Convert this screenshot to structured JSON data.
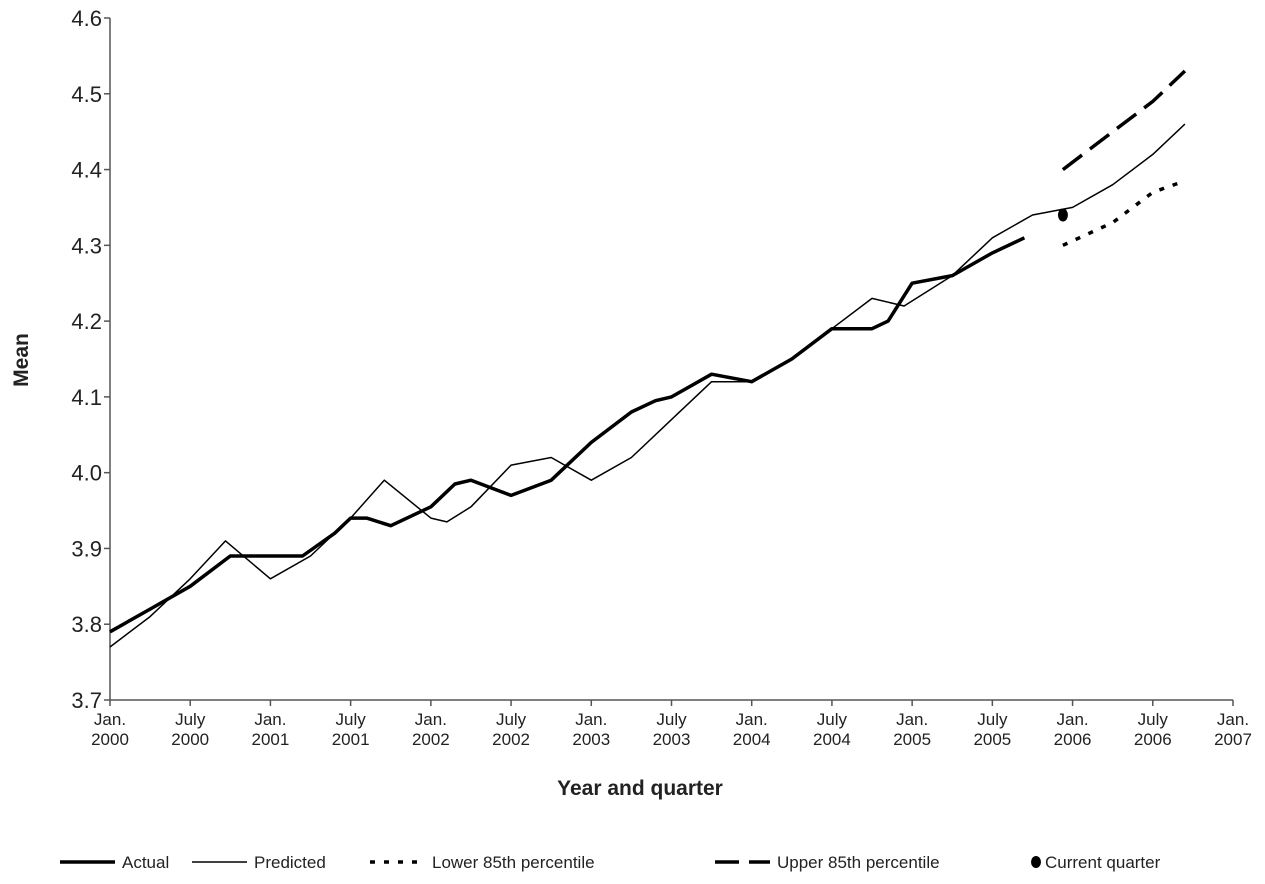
{
  "chart_data": {
    "type": "line",
    "ylabel": "Mean",
    "xlabel": "Year and quarter",
    "xlim": [
      2000,
      2007
    ],
    "ylim": [
      3.7,
      4.6
    ],
    "xticks": [
      {
        "value": 2000,
        "label": "Jan. 2000"
      },
      {
        "value": 2000.5,
        "label": "July 2000"
      },
      {
        "value": 2001,
        "label": "Jan. 2001"
      },
      {
        "value": 2001.5,
        "label": "July 2001"
      },
      {
        "value": 2002,
        "label": "Jan. 2002"
      },
      {
        "value": 2002.5,
        "label": "July 2002"
      },
      {
        "value": 2003,
        "label": "Jan. 2003"
      },
      {
        "value": 2003.5,
        "label": "July 2003"
      },
      {
        "value": 2004,
        "label": "Jan. 2004"
      },
      {
        "value": 2004.5,
        "label": "July 2004"
      },
      {
        "value": 2005,
        "label": "Jan. 2005"
      },
      {
        "value": 2005.5,
        "label": "July 2005"
      },
      {
        "value": 2006,
        "label": "Jan. 2006"
      },
      {
        "value": 2006.5,
        "label": "July 2006"
      },
      {
        "value": 2007,
        "label": "Jan. 2007"
      }
    ],
    "yticks": [
      {
        "value": 3.7,
        "label": "3.7"
      },
      {
        "value": 3.8,
        "label": "3.8"
      },
      {
        "value": 3.9,
        "label": "3.9"
      },
      {
        "value": 4.0,
        "label": "4.0"
      },
      {
        "value": 4.1,
        "label": "4.1"
      },
      {
        "value": 4.2,
        "label": "4.2"
      },
      {
        "value": 4.3,
        "label": "4.3"
      },
      {
        "value": 4.4,
        "label": "4.4"
      },
      {
        "value": 4.5,
        "label": "4.5"
      },
      {
        "value": 4.6,
        "label": "4.6"
      }
    ],
    "grid": false,
    "series": [
      {
        "name": "Actual",
        "color": "#000000",
        "width": 3.5,
        "dash": "none",
        "x": [
          2000.0,
          2000.25,
          2000.5,
          2000.75,
          2001.0,
          2001.2,
          2001.4,
          2001.5,
          2001.6,
          2001.75,
          2002.0,
          2002.15,
          2002.25,
          2002.5,
          2002.75,
          2003.0,
          2003.25,
          2003.4,
          2003.5,
          2003.75,
          2004.0,
          2004.25,
          2004.5,
          2004.75,
          2004.85,
          2005.0,
          2005.25,
          2005.5,
          2005.7
        ],
        "values": [
          3.79,
          3.82,
          3.85,
          3.89,
          3.89,
          3.89,
          3.92,
          3.94,
          3.94,
          3.93,
          3.955,
          3.985,
          3.99,
          3.97,
          3.99,
          4.04,
          4.08,
          4.095,
          4.1,
          4.13,
          4.12,
          4.15,
          4.19,
          4.19,
          4.2,
          4.25,
          4.26,
          4.29,
          4.31
        ]
      },
      {
        "name": "Predicted",
        "color": "#000000",
        "width": 1.5,
        "dash": "none",
        "x": [
          2000.0,
          2000.25,
          2000.5,
          2000.72,
          2001.0,
          2001.25,
          2001.5,
          2001.71,
          2002.0,
          2002.1,
          2002.25,
          2002.5,
          2002.75,
          2003.0,
          2003.25,
          2003.5,
          2003.75,
          2004.0,
          2004.25,
          2004.5,
          2004.75,
          2004.95,
          2005.25,
          2005.5,
          2005.75,
          2006.0,
          2006.25,
          2006.5,
          2006.7
        ],
        "values": [
          3.77,
          3.81,
          3.86,
          3.91,
          3.86,
          3.89,
          3.94,
          3.99,
          3.94,
          3.935,
          3.955,
          4.01,
          4.02,
          3.99,
          4.02,
          4.07,
          4.12,
          4.12,
          4.15,
          4.19,
          4.23,
          4.22,
          4.26,
          4.31,
          4.34,
          4.35,
          4.38,
          4.42,
          4.46
        ]
      },
      {
        "name": "Lower 85th percentile",
        "color": "#000000",
        "width": 3.5,
        "dash": "5 9",
        "x": [
          2005.94,
          2006.25,
          2006.5,
          2006.7
        ],
        "values": [
          4.3,
          4.33,
          4.37,
          4.385
        ]
      },
      {
        "name": "Upper 85th percentile",
        "color": "#000000",
        "width": 3.5,
        "dash": "24 10",
        "x": [
          2005.94,
          2006.25,
          2006.5,
          2006.7
        ],
        "values": [
          4.4,
          4.45,
          4.49,
          4.53
        ]
      },
      {
        "name": "Current quarter",
        "color": "#000000",
        "marker": "dot",
        "x": [
          2005.94
        ],
        "values": [
          4.34
        ]
      }
    ]
  }
}
